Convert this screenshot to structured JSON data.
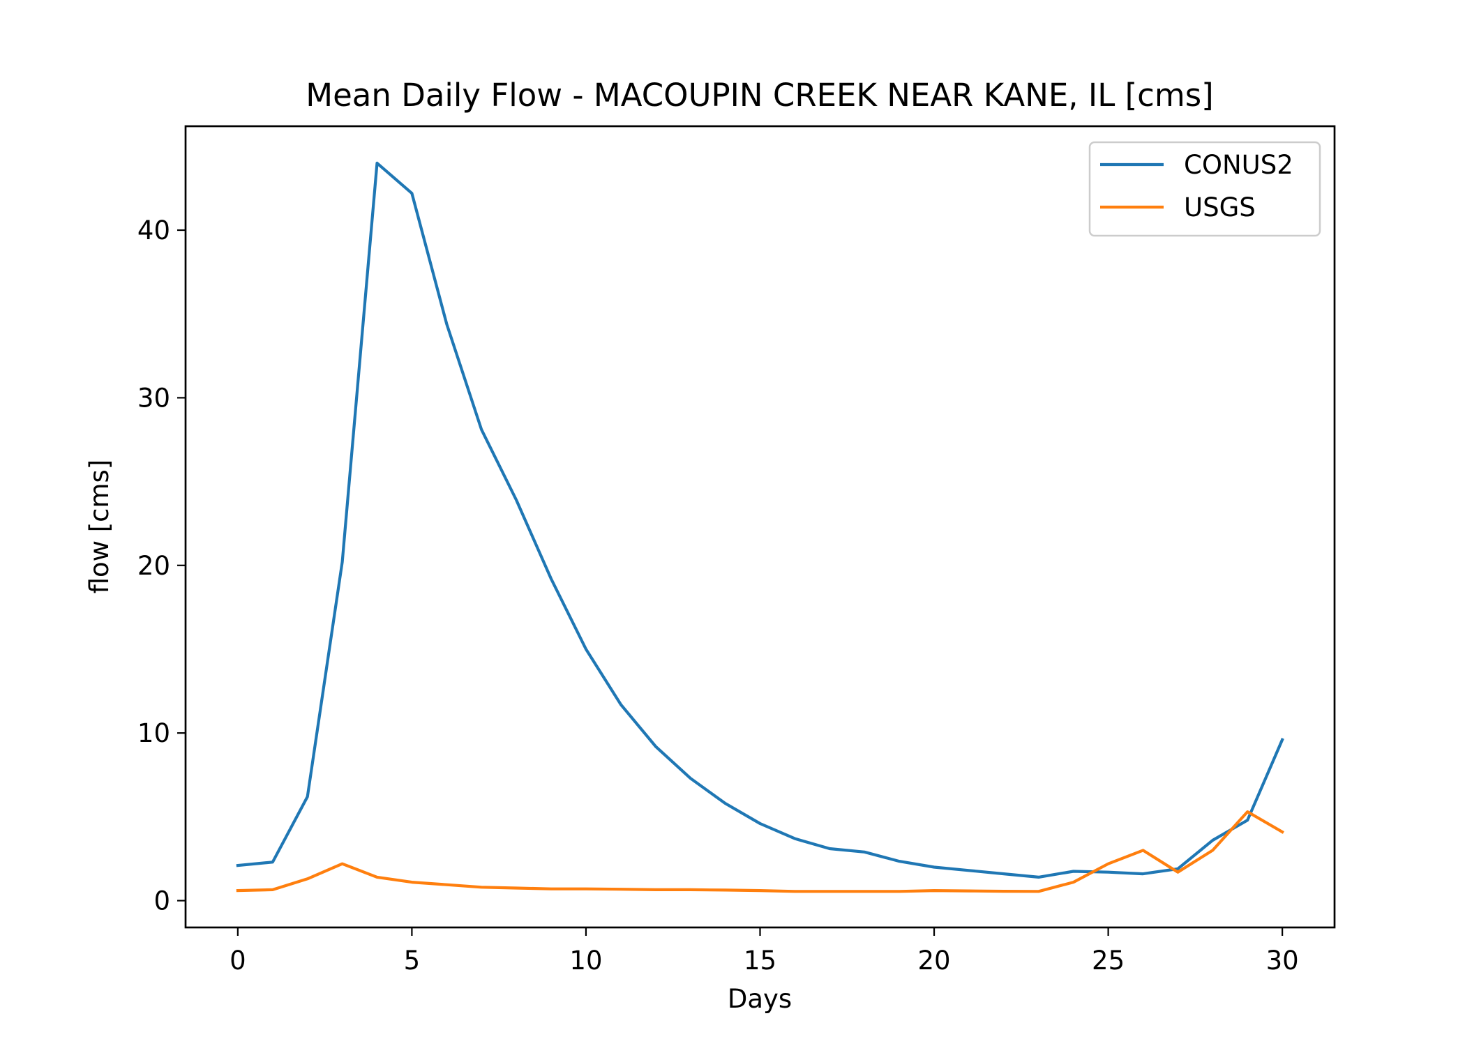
{
  "chart_data": {
    "type": "line",
    "title": "Mean Daily Flow - MACOUPIN CREEK NEAR KANE, IL [cms]",
    "xlabel": "Days",
    "ylabel": "flow [cms]",
    "xlim": [
      -1.5,
      31.5
    ],
    "ylim": [
      -1.6,
      46.2
    ],
    "xticks": [
      0,
      5,
      10,
      15,
      20,
      25,
      30
    ],
    "yticks": [
      0,
      10,
      20,
      30,
      40
    ],
    "grid": false,
    "legend_position": "top-right",
    "x": [
      0,
      1,
      2,
      3,
      4,
      5,
      6,
      7,
      8,
      9,
      10,
      11,
      12,
      13,
      14,
      15,
      16,
      17,
      18,
      19,
      20,
      21,
      22,
      23,
      24,
      25,
      26,
      27,
      28,
      29,
      30
    ],
    "series": [
      {
        "name": "CONUS2",
        "color": "#1f77b4",
        "values": [
          2.1,
          2.3,
          6.2,
          20.2,
          44.0,
          42.2,
          34.4,
          28.1,
          23.9,
          19.2,
          15.0,
          11.7,
          9.2,
          7.3,
          5.8,
          4.6,
          3.7,
          3.1,
          2.9,
          2.35,
          2.0,
          1.8,
          1.6,
          1.4,
          1.75,
          1.7,
          1.6,
          1.9,
          3.6,
          4.8,
          9.6
        ]
      },
      {
        "name": "USGS",
        "color": "#ff7f0e",
        "values": [
          0.6,
          0.65,
          1.3,
          2.2,
          1.4,
          1.1,
          0.95,
          0.8,
          0.75,
          0.7,
          0.7,
          0.68,
          0.65,
          0.65,
          0.63,
          0.6,
          0.55,
          0.55,
          0.55,
          0.55,
          0.6,
          0.58,
          0.56,
          0.55,
          1.1,
          2.2,
          3.0,
          1.7,
          3.0,
          5.3,
          4.1
        ]
      }
    ]
  }
}
